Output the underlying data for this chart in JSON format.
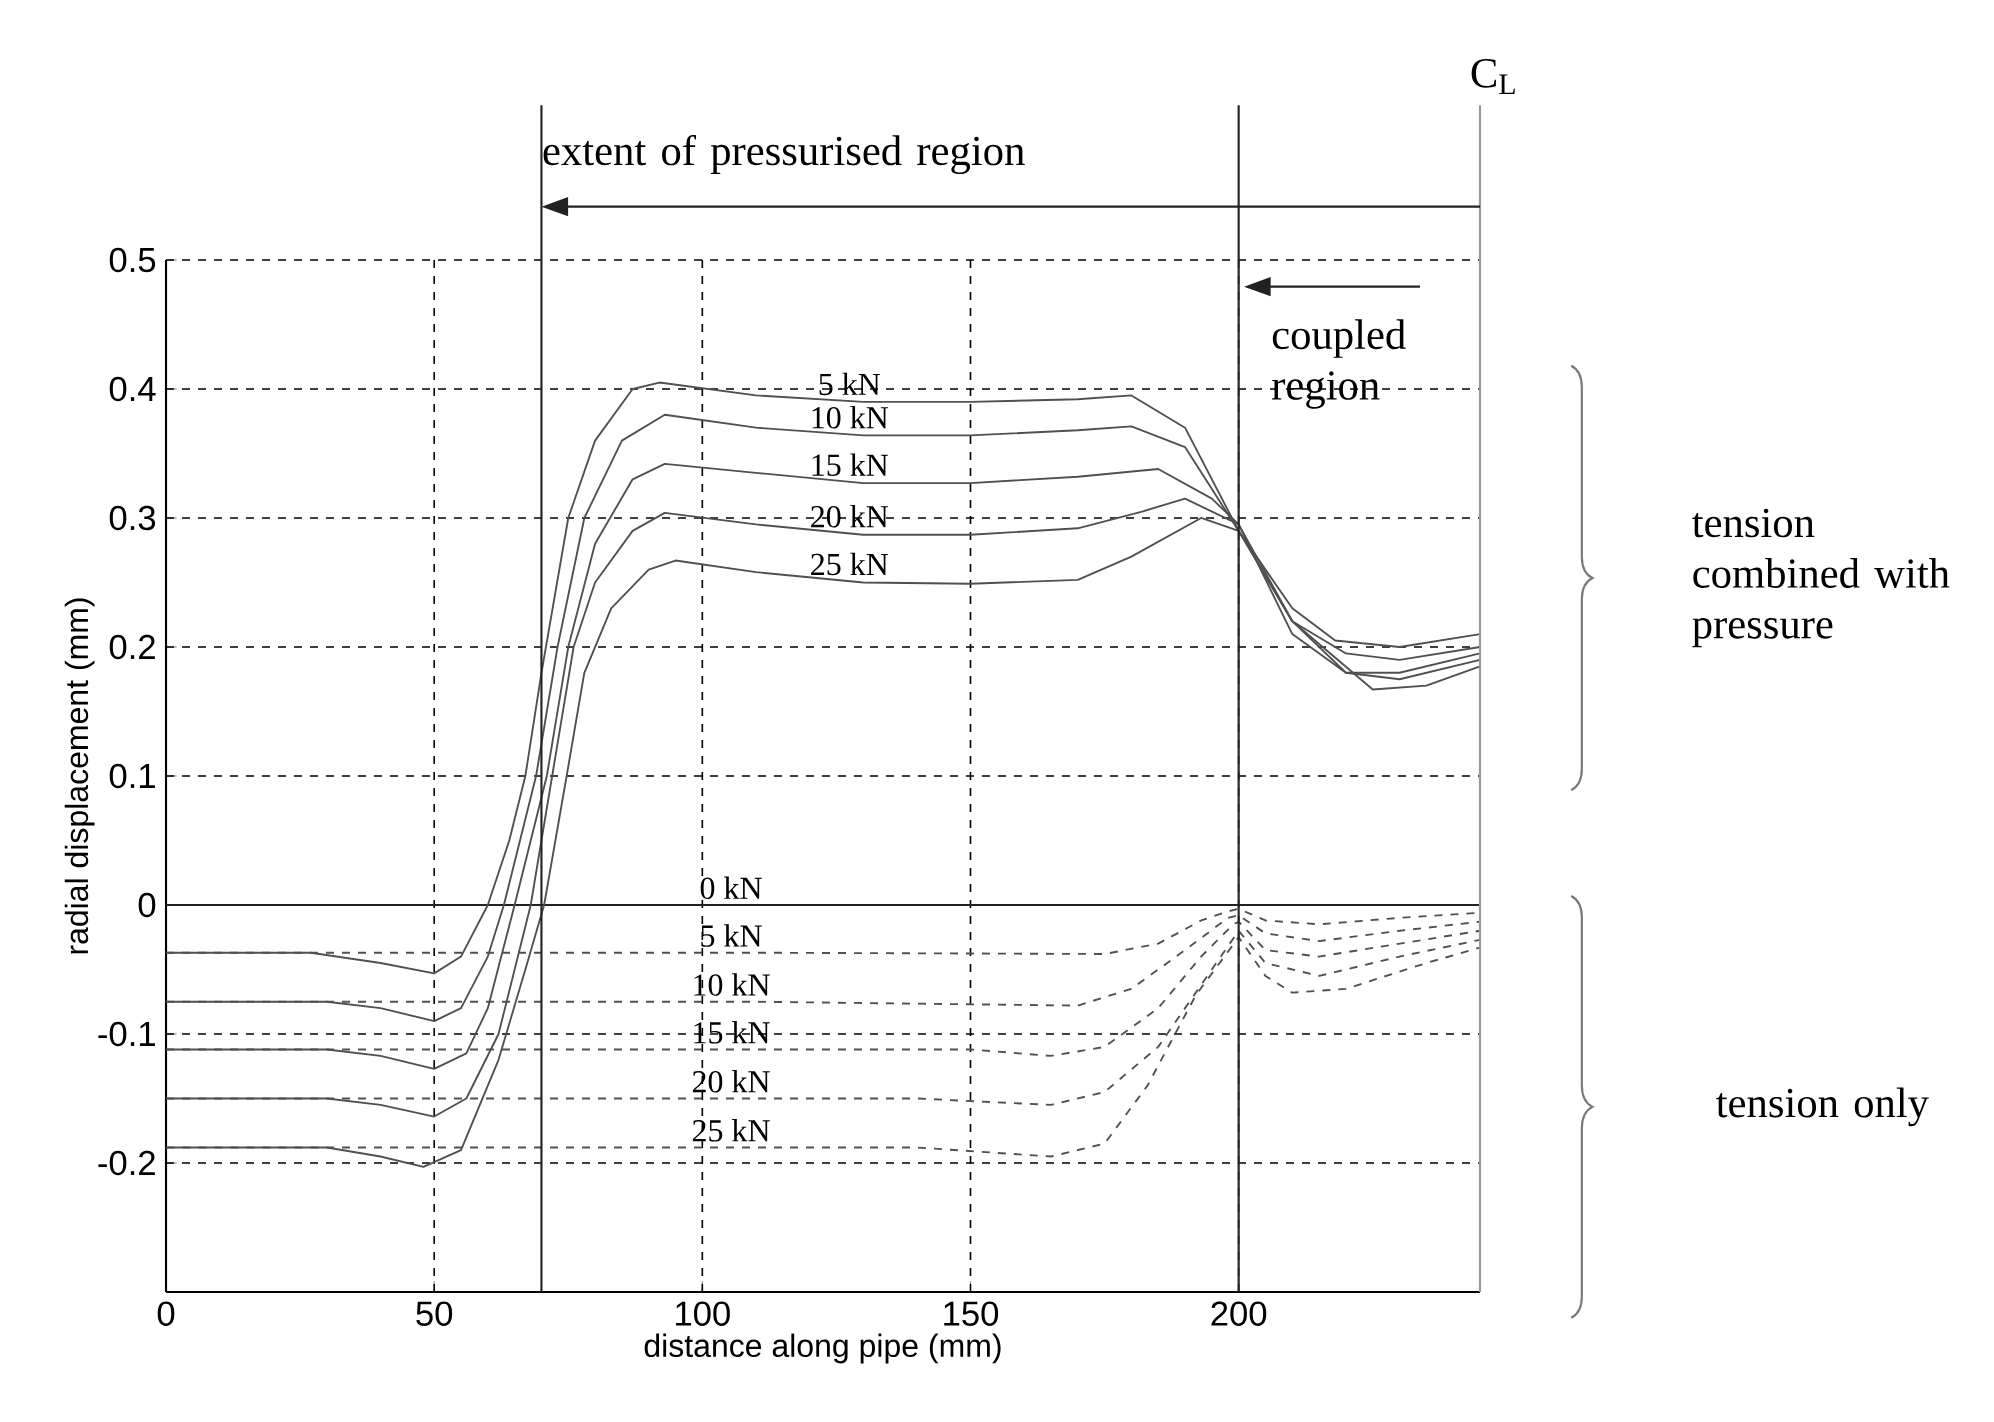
{
  "chart_data": {
    "type": "line",
    "xlabel": "distance along pipe (mm)",
    "ylabel": "radial displacement (mm)",
    "xlim": [
      0,
      245
    ],
    "xticks": [
      0,
      50,
      100,
      150,
      200
    ],
    "ylim": [
      -0.3,
      0.5
    ],
    "yticks": [
      -0.2,
      -0.1,
      0,
      0.1,
      0.2,
      0.3,
      0.4,
      0.5
    ],
    "grid": true,
    "series": [
      {
        "name": "0 kN",
        "color": "#222222",
        "line_style": "solid",
        "x": [
          0,
          245
        ],
        "values": [
          0,
          0
        ]
      },
      {
        "name": "5 kN",
        "color": "#505050",
        "line_style": "solid",
        "x": [
          0,
          27,
          40,
          50,
          55,
          60,
          64,
          67,
          70,
          75,
          80,
          87,
          92,
          110,
          130,
          150,
          170,
          180,
          190,
          200,
          210,
          218,
          230,
          245
        ],
        "values": [
          -0.037,
          -0.037,
          -0.045,
          -0.053,
          -0.04,
          0.0,
          0.05,
          0.1,
          0.18,
          0.3,
          0.36,
          0.4,
          0.405,
          0.395,
          0.39,
          0.39,
          0.392,
          0.395,
          0.37,
          0.29,
          0.23,
          0.205,
          0.2,
          0.21
        ]
      },
      {
        "name": "10 kN",
        "color": "#505050",
        "line_style": "solid",
        "x": [
          0,
          30,
          40,
          50,
          55,
          60,
          63,
          66,
          69,
          73,
          78,
          85,
          93,
          110,
          130,
          150,
          170,
          180,
          190,
          200,
          210,
          220,
          230,
          245
        ],
        "values": [
          -0.075,
          -0.075,
          -0.08,
          -0.09,
          -0.08,
          -0.04,
          0,
          0.05,
          0.1,
          0.2,
          0.3,
          0.36,
          0.38,
          0.37,
          0.364,
          0.364,
          0.368,
          0.371,
          0.355,
          0.29,
          0.22,
          0.195,
          0.19,
          0.2
        ]
      },
      {
        "name": "15 kN",
        "color": "#505050",
        "line_style": "solid",
        "x": [
          0,
          30,
          40,
          50,
          56,
          60,
          65,
          68,
          71,
          75,
          80,
          87,
          93,
          110,
          130,
          150,
          170,
          185,
          195,
          200,
          210,
          220,
          230,
          245
        ],
        "values": [
          -0.112,
          -0.112,
          -0.117,
          -0.127,
          -0.115,
          -0.08,
          0,
          0.05,
          0.1,
          0.2,
          0.28,
          0.33,
          0.342,
          0.335,
          0.327,
          0.327,
          0.332,
          0.338,
          0.315,
          0.295,
          0.21,
          0.18,
          0.18,
          0.195
        ]
      },
      {
        "name": "20 kN",
        "color": "#505050",
        "line_style": "solid",
        "x": [
          0,
          30,
          40,
          50,
          56,
          62,
          68,
          70,
          72,
          76,
          80,
          87,
          93,
          110,
          130,
          150,
          170,
          182,
          190,
          200,
          210,
          220,
          230,
          245
        ],
        "values": [
          -0.15,
          -0.15,
          -0.155,
          -0.164,
          -0.15,
          -0.1,
          0,
          0.05,
          0.1,
          0.2,
          0.25,
          0.29,
          0.304,
          0.295,
          0.287,
          0.287,
          0.292,
          0.305,
          0.315,
          0.295,
          0.22,
          0.18,
          0.175,
          0.19
        ]
      },
      {
        "name": "25 kN",
        "color": "#505050",
        "line_style": "solid",
        "x": [
          0,
          30,
          40,
          48,
          55,
          62,
          67,
          70.5,
          74.7,
          78,
          83,
          90,
          95,
          110,
          130,
          150,
          170,
          180,
          193,
          200,
          210,
          225,
          235,
          245
        ],
        "values": [
          -0.188,
          -0.188,
          -0.195,
          -0.203,
          -0.19,
          -0.12,
          -0.05,
          0,
          0.1,
          0.18,
          0.23,
          0.26,
          0.267,
          0.258,
          0.25,
          0.249,
          0.252,
          0.27,
          0.3,
          0.29,
          0.22,
          0.167,
          0.17,
          0.185
        ]
      },
      {
        "name": "5 kN",
        "color": "#505050",
        "line_style": "dashed",
        "x": [
          0,
          110,
          175,
          185,
          193,
          198,
          200,
          205,
          215,
          230,
          245
        ],
        "values": [
          -0.037,
          -0.037,
          -0.038,
          -0.03,
          -0.012,
          -0.005,
          -0.003,
          -0.012,
          -0.015,
          -0.01,
          -0.006
        ]
      },
      {
        "name": "10 kN",
        "color": "#505050",
        "line_style": "dashed",
        "x": [
          0,
          110,
          170,
          180,
          190,
          198,
          200,
          205,
          215,
          230,
          245
        ],
        "values": [
          -0.075,
          -0.075,
          -0.078,
          -0.065,
          -0.035,
          -0.01,
          -0.008,
          -0.022,
          -0.028,
          -0.02,
          -0.013
        ]
      },
      {
        "name": "15 kN",
        "color": "#505050",
        "line_style": "dashed",
        "x": [
          0,
          110,
          150,
          165,
          175,
          185,
          193,
          199,
          200,
          205,
          215,
          230,
          245
        ],
        "values": [
          -0.112,
          -0.112,
          -0.112,
          -0.117,
          -0.11,
          -0.08,
          -0.04,
          -0.015,
          -0.013,
          -0.035,
          -0.04,
          -0.03,
          -0.02
        ]
      },
      {
        "name": "20 kN",
        "color": "#505050",
        "line_style": "dashed",
        "x": [
          0,
          110,
          140,
          165,
          175,
          185,
          195,
          200,
          205,
          215,
          230,
          245
        ],
        "values": [
          -0.15,
          -0.15,
          -0.15,
          -0.155,
          -0.145,
          -0.11,
          -0.05,
          -0.02,
          -0.045,
          -0.055,
          -0.04,
          -0.027
        ]
      },
      {
        "name": "25 kN",
        "color": "#505050",
        "line_style": "dashed",
        "x": [
          0,
          110,
          140,
          165,
          175,
          183,
          192,
          200,
          205,
          210,
          220,
          235,
          245
        ],
        "values": [
          -0.188,
          -0.188,
          -0.188,
          -0.195,
          -0.185,
          -0.14,
          -0.07,
          -0.025,
          -0.055,
          -0.068,
          -0.065,
          -0.045,
          -0.033
        ]
      }
    ],
    "ref_lines": [
      {
        "axis": "x",
        "value": 70,
        "label": "extent of  pressurised region",
        "color": "#222222"
      },
      {
        "axis": "x",
        "value": 200,
        "label": "coupled region",
        "color": "#222222"
      },
      {
        "axis": "x",
        "value": 245,
        "label": "C$_{L}$",
        "color": "#999999"
      }
    ],
    "annotations": [
      "tension combined with pressure",
      "tension only"
    ]
  }
}
